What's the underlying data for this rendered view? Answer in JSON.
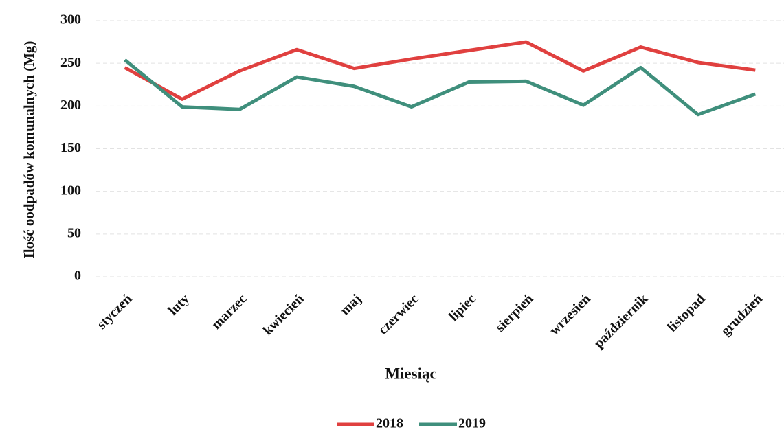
{
  "chart_data": {
    "type": "line",
    "categories": [
      "styczeń",
      "luty",
      "marzec",
      "kwiecień",
      "maj",
      "czerwiec",
      "lipiec",
      "sierpień",
      "wrzesień",
      "październik",
      "listopad",
      "grudzień"
    ],
    "series": [
      {
        "name": "2018",
        "color": "#e0403f",
        "values": [
          245,
          208,
          241,
          266,
          244,
          255,
          265,
          275,
          241,
          269,
          251,
          242
        ]
      },
      {
        "name": "2019",
        "color": "#3f8f7c",
        "values": [
          254,
          199,
          196,
          234,
          223,
          199,
          228,
          229,
          201,
          245,
          190,
          214
        ]
      }
    ],
    "xlabel": "Miesiąc",
    "ylabel": "Ilość oodpadów komunalnych (Mg)",
    "ylim": [
      0,
      300
    ],
    "yticks": [
      0,
      50,
      100,
      150,
      200,
      250,
      300
    ],
    "grid": true,
    "legend": "bottom"
  }
}
